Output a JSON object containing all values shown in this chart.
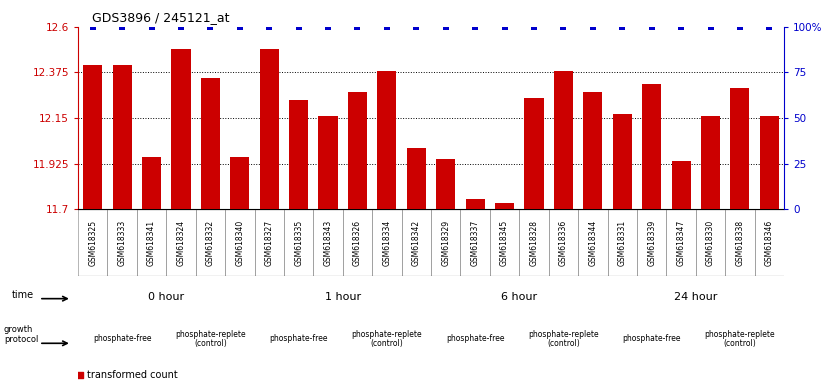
{
  "title": "GDS3896 / 245121_at",
  "samples": [
    "GSM618325",
    "GSM618333",
    "GSM618341",
    "GSM618324",
    "GSM618332",
    "GSM618340",
    "GSM618327",
    "GSM618335",
    "GSM618343",
    "GSM618326",
    "GSM618334",
    "GSM618342",
    "GSM618329",
    "GSM618337",
    "GSM618345",
    "GSM618328",
    "GSM618336",
    "GSM618344",
    "GSM618331",
    "GSM618339",
    "GSM618347",
    "GSM618330",
    "GSM618338",
    "GSM618346"
  ],
  "bar_values": [
    12.41,
    12.41,
    11.96,
    12.49,
    12.35,
    11.96,
    12.49,
    12.24,
    12.16,
    12.28,
    12.38,
    12.0,
    11.95,
    11.75,
    11.73,
    12.25,
    12.38,
    12.28,
    12.17,
    12.32,
    11.94,
    12.16,
    12.3,
    12.16
  ],
  "ylim_left": [
    11.7,
    12.6
  ],
  "ylim_right": [
    0,
    100
  ],
  "yticks_left": [
    11.7,
    11.925,
    12.15,
    12.375,
    12.6
  ],
  "yticks_right": [
    0,
    25,
    50,
    75,
    100
  ],
  "bar_color": "#cc0000",
  "percentile_color": "#0000cc",
  "left_axis_color": "#cc0000",
  "right_axis_color": "#0000cc",
  "background_color": "#ffffff",
  "xticklabel_bg": "#d8d8d8",
  "time_groups": [
    {
      "label": "0 hour",
      "start": 0,
      "end": 6,
      "color": "#ccffcc"
    },
    {
      "label": "1 hour",
      "start": 6,
      "end": 12,
      "color": "#ccffcc"
    },
    {
      "label": "6 hour",
      "start": 12,
      "end": 18,
      "color": "#ccffcc"
    },
    {
      "label": "24 hour",
      "start": 18,
      "end": 24,
      "color": "#55cc55"
    }
  ],
  "protocol_groups": [
    {
      "label": "phosphate-free",
      "start": 0,
      "end": 3,
      "color": "#dd88dd"
    },
    {
      "label": "phosphate-replete\n(control)",
      "start": 3,
      "end": 6,
      "color": "#ee99ee"
    },
    {
      "label": "phosphate-free",
      "start": 6,
      "end": 9,
      "color": "#dd88dd"
    },
    {
      "label": "phosphate-replete\n(control)",
      "start": 9,
      "end": 12,
      "color": "#ee99ee"
    },
    {
      "label": "phosphate-free",
      "start": 12,
      "end": 15,
      "color": "#dd88dd"
    },
    {
      "label": "phosphate-replete\n(control)",
      "start": 15,
      "end": 18,
      "color": "#ee99ee"
    },
    {
      "label": "phosphate-free",
      "start": 18,
      "end": 21,
      "color": "#dd88dd"
    },
    {
      "label": "phosphate-replete\n(control)",
      "start": 21,
      "end": 24,
      "color": "#ee99ee"
    }
  ]
}
